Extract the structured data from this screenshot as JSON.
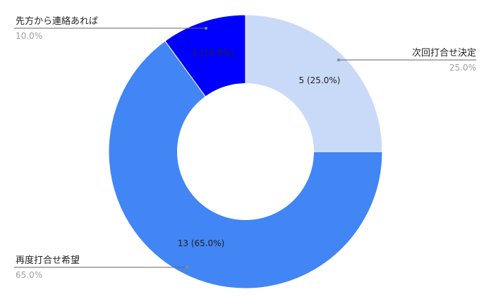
{
  "chart_data": {
    "type": "pie",
    "donut": true,
    "slices": [
      {
        "label": "次回打合せ決定",
        "value": 5,
        "percent_text": "25.0%",
        "data_label": "5 (25.0%)",
        "color": "#c9daf8"
      },
      {
        "label": "再度打合せ希望",
        "value": 13,
        "percent_text": "65.0%",
        "data_label": "13 (65.0%)",
        "color": "#4285f4"
      },
      {
        "label": "先方から連絡あれば",
        "value": 2,
        "percent_text": "10.0%",
        "data_label": "2 (10.0%)",
        "color": "#0000ff"
      }
    ],
    "title": "",
    "legend": "none"
  }
}
